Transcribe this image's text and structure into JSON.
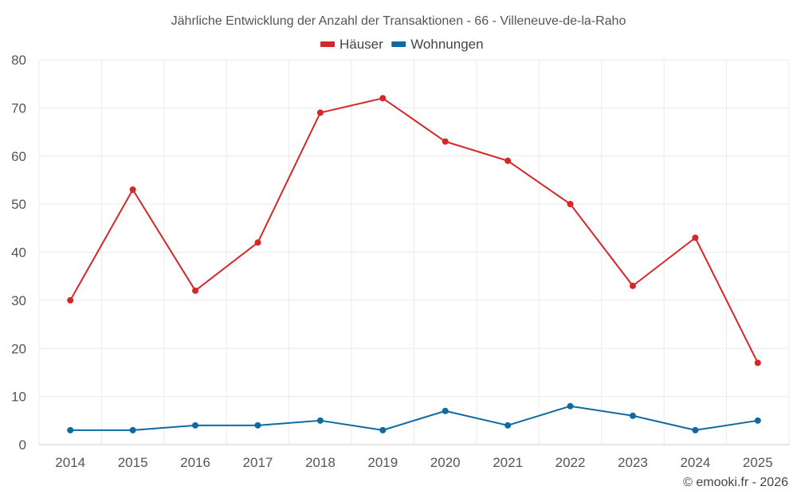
{
  "chart_data": {
    "type": "line",
    "title": "Jährliche Entwicklung der Anzahl der Transaktionen - 66 - Villeneuve-de-la-Raho",
    "categories": [
      "2014",
      "2015",
      "2016",
      "2017",
      "2018",
      "2019",
      "2020",
      "2021",
      "2022",
      "2023",
      "2024",
      "2025"
    ],
    "series": [
      {
        "name": "Häuser",
        "color": "#d62728",
        "values": [
          30,
          53,
          32,
          42,
          69,
          72,
          63,
          59,
          50,
          33,
          43,
          17
        ]
      },
      {
        "name": "Wohnungen",
        "color": "#0e6aa3",
        "values": [
          3,
          3,
          4,
          4,
          5,
          3,
          7,
          4,
          8,
          6,
          3,
          5
        ]
      }
    ],
    "ylim": [
      0,
      80
    ],
    "yticks": [
      0,
      10,
      20,
      30,
      40,
      50,
      60,
      70,
      80
    ],
    "xlabel": "",
    "ylabel": "",
    "grid": true,
    "legend": "top-center"
  },
  "credit": "© emooki.fr - 2026"
}
